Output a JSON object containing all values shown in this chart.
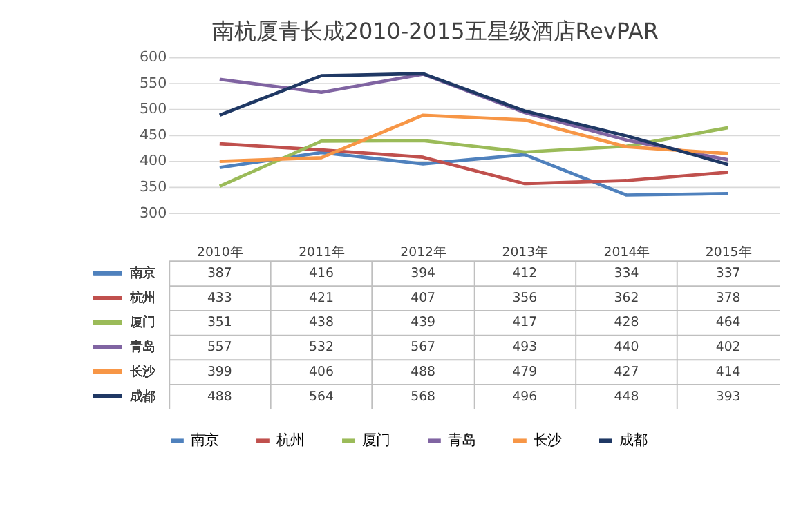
{
  "chart_data": {
    "type": "line",
    "title": "南杭厦青长成2010-2015五星级酒店RevPAR",
    "categories": [
      "2010年",
      "2011年",
      "2012年",
      "2013年",
      "2014年",
      "2015年"
    ],
    "series": [
      {
        "name": "南京",
        "color": "#4f81bd",
        "values": [
          387,
          416,
          394,
          412,
          334,
          337
        ]
      },
      {
        "name": "杭州",
        "color": "#c0504d",
        "values": [
          433,
          421,
          407,
          356,
          362,
          378
        ]
      },
      {
        "name": "厦门",
        "color": "#9bbb59",
        "values": [
          351,
          438,
          439,
          417,
          428,
          464
        ]
      },
      {
        "name": "青岛",
        "color": "#8064a2",
        "values": [
          557,
          532,
          567,
          493,
          440,
          402
        ]
      },
      {
        "name": "长沙",
        "color": "#f79646",
        "values": [
          399,
          406,
          488,
          479,
          427,
          414
        ]
      },
      {
        "name": "成都",
        "color": "#1f3864",
        "values": [
          488,
          564,
          568,
          496,
          448,
          393
        ]
      }
    ],
    "ylim": [
      300,
      600
    ],
    "yticks": [
      300,
      350,
      400,
      450,
      500,
      550,
      600
    ],
    "grid": "y",
    "legend": "bottom",
    "marker": "none",
    "line_style": "solid",
    "data_labels": true,
    "tick_labels": "y"
  }
}
